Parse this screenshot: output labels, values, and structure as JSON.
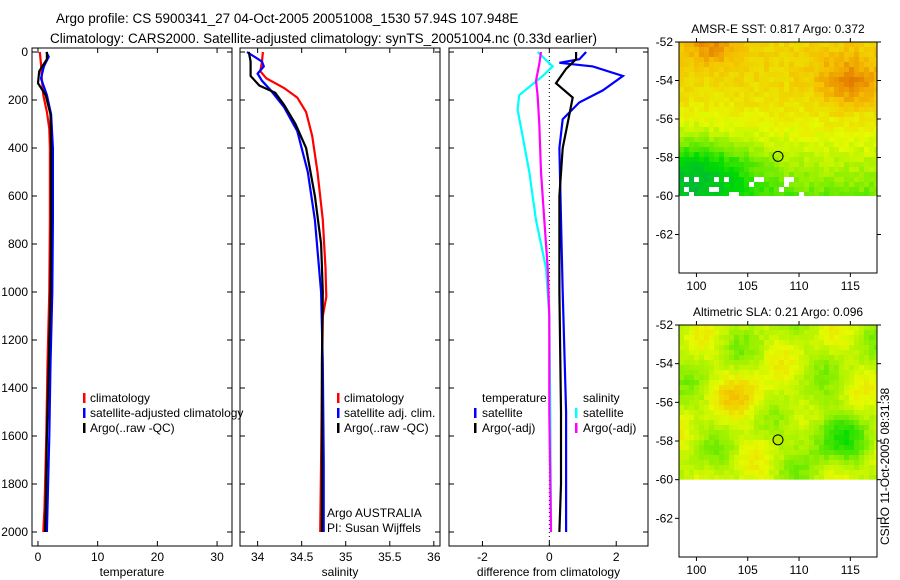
{
  "title_line1": "Argo profile: CS 5900341_27 04-Oct-2005 20051008_1530 57.94S 107.948E",
  "title_line2": "Climatology: CARS2000. Satellite-adjusted climatology: synTS_20051004.nc (0.33d earlier)",
  "credit": "CSIRO 11-Oct-2005 08:31:38",
  "colors": {
    "clim": "#ff0000",
    "sat": "#0000ff",
    "argo": "#000000",
    "sal_sat": "#00ffff",
    "sal_argo": "#ff00ff"
  },
  "chart_data": [
    {
      "type": "line",
      "xlabel": "temperature",
      "xlim": [
        -1,
        32.5
      ],
      "ylim": [
        0,
        2055
      ],
      "xticks": [
        "0",
        "10",
        "20",
        "30"
      ],
      "xtick_values": [
        0,
        10,
        20,
        30
      ],
      "yticks": [
        "0",
        "200",
        "400",
        "600",
        "800",
        "1000",
        "1200",
        "1400",
        "1600",
        "1800",
        "2000"
      ],
      "legend": [
        "climatology",
        "satellite-adjusted climatology",
        "Argo(..raw -QC)"
      ],
      "series": [
        {
          "name": "climatology",
          "color": "clim",
          "points": [
            [
              0.3,
              0
            ],
            [
              0.5,
              50
            ],
            [
              0.6,
              100
            ],
            [
              0.9,
              180
            ],
            [
              1.5,
              250
            ],
            [
              1.9,
              320
            ],
            [
              2.0,
              400
            ],
            [
              2.0,
              700
            ],
            [
              1.9,
              1000
            ],
            [
              1.6,
              1300
            ],
            [
              1.4,
              1600
            ],
            [
              1.1,
              1900
            ],
            [
              0.9,
              2000
            ]
          ]
        },
        {
          "name": "satellite-adjusted climatology",
          "color": "sat",
          "points": [
            [
              1.4,
              0
            ],
            [
              1.8,
              20
            ],
            [
              1.0,
              60
            ],
            [
              0.5,
              110
            ],
            [
              1.5,
              180
            ],
            [
              2.2,
              260
            ],
            [
              2.5,
              400
            ],
            [
              2.5,
              700
            ],
            [
              2.4,
              1000
            ],
            [
              2.1,
              1300
            ],
            [
              1.9,
              1600
            ],
            [
              1.6,
              1900
            ],
            [
              1.5,
              2000
            ]
          ]
        },
        {
          "name": "Argo(..raw -QC)",
          "color": "argo",
          "points": [
            [
              1.5,
              0
            ],
            [
              1.5,
              30
            ],
            [
              0.2,
              80
            ],
            [
              0.0,
              130
            ],
            [
              1.3,
              180
            ],
            [
              2.1,
              260
            ],
            [
              2.2,
              400
            ],
            [
              2.2,
              700
            ],
            [
              2.1,
              1000
            ],
            [
              1.8,
              1300
            ],
            [
              1.5,
              1600
            ],
            [
              1.3,
              1900
            ],
            [
              1.2,
              2000
            ]
          ]
        }
      ]
    },
    {
      "type": "line",
      "xlabel": "salinity",
      "xlim": [
        33.8,
        36.07
      ],
      "ylim": [
        0,
        2055
      ],
      "xticks": [
        "34",
        "34.5",
        "35",
        "35.5",
        "36"
      ],
      "xtick_values": [
        34,
        34.5,
        35,
        35.5,
        36
      ],
      "legend": [
        "climatology",
        "satellite adj. clim.",
        "Argo(..raw -QC)"
      ],
      "annotation": [
        "Argo AUSTRALIA",
        "PI: Susan Wijffels"
      ],
      "series": [
        {
          "name": "climatology",
          "color": "clim",
          "points": [
            [
              34.06,
              0
            ],
            [
              34.05,
              40
            ],
            [
              34.03,
              80
            ],
            [
              34.1,
              110
            ],
            [
              34.3,
              150
            ],
            [
              34.45,
              190
            ],
            [
              34.55,
              250
            ],
            [
              34.62,
              350
            ],
            [
              34.68,
              500
            ],
            [
              34.74,
              700
            ],
            [
              34.77,
              900
            ],
            [
              34.78,
              1020
            ],
            [
              34.74,
              1100
            ],
            [
              34.73,
              1400
            ],
            [
              34.72,
              1700
            ],
            [
              34.71,
              2000
            ]
          ]
        },
        {
          "name": "satellite adj. clim.",
          "color": "sat",
          "points": [
            [
              33.88,
              0
            ],
            [
              34.05,
              40
            ],
            [
              34.07,
              60
            ],
            [
              34.0,
              90
            ],
            [
              34.05,
              120
            ],
            [
              34.15,
              160
            ],
            [
              34.3,
              230
            ],
            [
              34.45,
              330
            ],
            [
              34.57,
              500
            ],
            [
              34.65,
              700
            ],
            [
              34.72,
              1000
            ],
            [
              34.74,
              1300
            ],
            [
              34.75,
              1700
            ],
            [
              34.75,
              2000
            ]
          ]
        },
        {
          "name": "Argo(..raw -QC)",
          "color": "argo",
          "points": [
            [
              33.9,
              0
            ],
            [
              33.92,
              40
            ],
            [
              33.92,
              100
            ],
            [
              34.02,
              140
            ],
            [
              34.2,
              170
            ],
            [
              34.3,
              220
            ],
            [
              34.43,
              300
            ],
            [
              34.55,
              400
            ],
            [
              34.65,
              600
            ],
            [
              34.72,
              800
            ],
            [
              34.74,
              1000
            ],
            [
              34.73,
              1300
            ],
            [
              34.73,
              1700
            ],
            [
              34.73,
              2000
            ]
          ]
        }
      ]
    },
    {
      "type": "line",
      "xlabel": "difference from climatology",
      "xlim": [
        -3,
        2.95
      ],
      "ylim": [
        0,
        2055
      ],
      "xticks": [
        "-2",
        "0",
        "2"
      ],
      "xtick_values": [
        -2,
        0,
        2
      ],
      "legend_temperature": {
        "title": "temperature",
        "items": [
          "satellite",
          "Argo(-adj)"
        ]
      },
      "legend_salinity": {
        "title": "salinity",
        "items": [
          "satellite",
          "Argo(-adj)"
        ]
      },
      "series": [
        {
          "name": "temperature satellite",
          "color": "sat",
          "points": [
            [
              1.1,
              0
            ],
            [
              0.9,
              30
            ],
            [
              0.3,
              45
            ],
            [
              1.3,
              60
            ],
            [
              2.2,
              100
            ],
            [
              1.6,
              160
            ],
            [
              0.9,
              210
            ],
            [
              0.4,
              280
            ],
            [
              0.3,
              400
            ],
            [
              0.35,
              700
            ],
            [
              0.4,
              1000
            ],
            [
              0.5,
              1500
            ],
            [
              0.5,
              2000
            ]
          ]
        },
        {
          "name": "temperature Argo(-adj)",
          "color": "argo",
          "points": [
            [
              0.8,
              0
            ],
            [
              0.8,
              30
            ],
            [
              0.5,
              70
            ],
            [
              0.2,
              130
            ],
            [
              0.7,
              190
            ],
            [
              0.6,
              260
            ],
            [
              0.4,
              400
            ],
            [
              0.3,
              600
            ],
            [
              0.3,
              1000
            ],
            [
              0.35,
              1500
            ],
            [
              0.35,
              1800
            ],
            [
              0.3,
              2000
            ]
          ]
        },
        {
          "name": "salinity satellite",
          "color": "sal_sat",
          "points": [
            [
              -0.35,
              0
            ],
            [
              0.1,
              60
            ],
            [
              -0.2,
              100
            ],
            [
              -0.9,
              180
            ],
            [
              -0.95,
              240
            ],
            [
              -0.8,
              350
            ],
            [
              -0.6,
              500
            ],
            [
              -0.4,
              700
            ],
            [
              -0.1,
              900
            ],
            [
              0.0,
              1100
            ],
            [
              0.03,
              1500
            ],
            [
              0.05,
              2000
            ]
          ]
        },
        {
          "name": "salinity Argo(-adj)",
          "color": "sal_argo",
          "points": [
            [
              -0.25,
              0
            ],
            [
              -0.3,
              50
            ],
            [
              -0.4,
              120
            ],
            [
              -0.35,
              180
            ],
            [
              -0.3,
              300
            ],
            [
              -0.25,
              500
            ],
            [
              -0.15,
              700
            ],
            [
              -0.05,
              900
            ],
            [
              0.0,
              1100
            ],
            [
              0.0,
              1500
            ],
            [
              0.05,
              2000
            ]
          ]
        }
      ]
    },
    {
      "type": "heatmap",
      "title": "AMSR-E SST: 0.817 Argo: 0.372",
      "xlim": [
        98.3,
        117.6
      ],
      "ylim": [
        -52,
        -64
      ],
      "data_south_limit": -60,
      "xticks": [
        "100",
        "105",
        "110",
        "115"
      ],
      "xtick_values": [
        100,
        105,
        110,
        115
      ],
      "yticks": [
        "-52",
        "-54",
        "-56",
        "-58",
        "-60",
        "-62"
      ],
      "ytick_values": [
        -52,
        -54,
        -56,
        -58,
        -60,
        -62
      ],
      "marker": {
        "lon": 107.95,
        "lat": -57.94,
        "filled": false
      }
    },
    {
      "type": "heatmap",
      "title": "Altimetric SLA: 0.21 Argo: 0.096",
      "xlim": [
        98.3,
        117.6
      ],
      "ylim": [
        -52,
        -64
      ],
      "data_south_limit": -60,
      "xticks": [
        "100",
        "105",
        "110",
        "115"
      ],
      "xtick_values": [
        100,
        105,
        110,
        115
      ],
      "yticks": [
        "-52",
        "-54",
        "-56",
        "-58",
        "-60",
        "-62"
      ],
      "ytick_values": [
        -52,
        -54,
        -56,
        -58,
        -60,
        -62
      ],
      "marker": {
        "lon": 107.95,
        "lat": -57.94,
        "filled": true
      }
    }
  ]
}
